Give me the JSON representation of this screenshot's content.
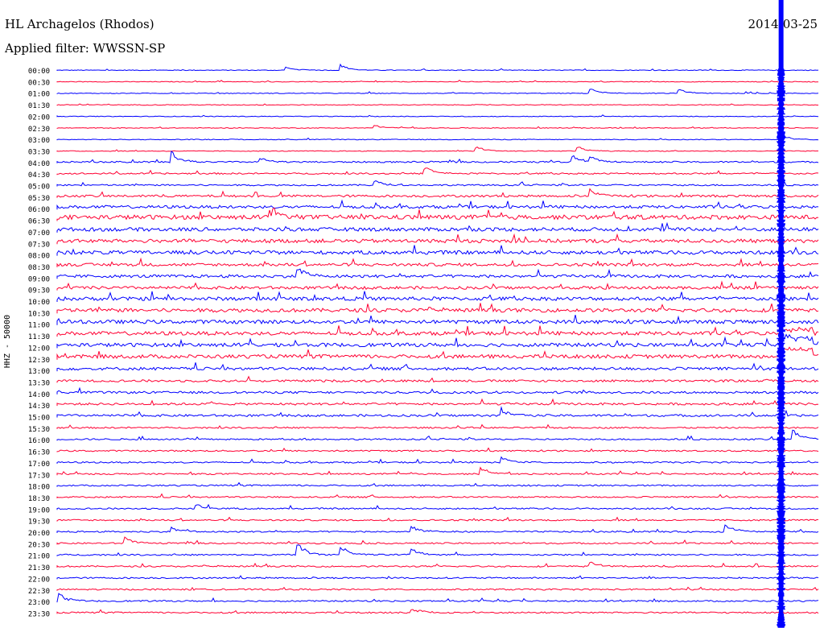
{
  "header": {
    "station": "HL Archagelos (Rhodos)",
    "filter": "Applied filter: WWSSN-SP",
    "date": "2014-03-25"
  },
  "chart_data": {
    "type": "line",
    "ylabel": "HHZ - 50000",
    "row_times": [
      "00:00",
      "00:30",
      "01:00",
      "01:30",
      "02:00",
      "02:30",
      "03:00",
      "03:30",
      "04:00",
      "04:30",
      "05:00",
      "05:30",
      "06:00",
      "06:30",
      "07:00",
      "07:30",
      "08:00",
      "08:30",
      "09:00",
      "09:30",
      "10:00",
      "10:30",
      "11:00",
      "11:30",
      "12:00",
      "12:30",
      "13:00",
      "13:30",
      "14:00",
      "14:30",
      "15:00",
      "15:30",
      "16:00",
      "16:30",
      "17:00",
      "17:30",
      "18:00",
      "18:30",
      "19:00",
      "19:30",
      "20:00",
      "20:30",
      "21:00",
      "21:30",
      "22:00",
      "22:30",
      "23:00",
      "23:30"
    ],
    "row_minutes": 30,
    "colors": [
      "#0000ff",
      "#ff0033"
    ],
    "noise_amplitude": [
      1,
      1,
      1,
      1,
      1,
      1,
      1,
      1,
      2,
      2,
      2,
      3,
      4,
      6,
      5,
      5,
      5,
      4,
      4,
      4,
      5,
      5,
      5,
      5,
      5,
      5,
      4,
      3,
      3,
      3,
      3,
      2,
      2,
      2,
      2,
      2,
      2,
      2,
      2,
      2,
      2,
      2,
      2,
      2,
      2,
      2,
      2,
      2
    ],
    "events": [
      {
        "row": 0,
        "minute": 9.0,
        "amplitude": 5
      },
      {
        "row": 0,
        "minute": 11.2,
        "amplitude": 8
      },
      {
        "row": 2,
        "minute": 21.0,
        "amplitude": 7
      },
      {
        "row": 2,
        "minute": 24.5,
        "amplitude": 5
      },
      {
        "row": 5,
        "minute": 12.5,
        "amplitude": 4
      },
      {
        "row": 6,
        "minute": 28.5,
        "amplitude": 7
      },
      {
        "row": 7,
        "minute": 16.5,
        "amplitude": 7
      },
      {
        "row": 7,
        "minute": 20.5,
        "amplitude": 6
      },
      {
        "row": 8,
        "minute": 4.5,
        "amplitude": 14
      },
      {
        "row": 8,
        "minute": 8.0,
        "amplitude": 6
      },
      {
        "row": 8,
        "minute": 20.3,
        "amplitude": 10
      },
      {
        "row": 8,
        "minute": 21.0,
        "amplitude": 9
      },
      {
        "row": 9,
        "minute": 14.5,
        "amplitude": 9
      },
      {
        "row": 10,
        "minute": 12.5,
        "amplitude": 7
      },
      {
        "row": 11,
        "minute": 21.0,
        "amplitude": 10
      },
      {
        "row": 13,
        "minute": 8.5,
        "amplitude": 12
      },
      {
        "row": 18,
        "minute": 9.5,
        "amplitude": 12
      },
      {
        "row": 30,
        "minute": 17.5,
        "amplitude": 10
      },
      {
        "row": 32,
        "minute": 29.0,
        "amplitude": 12
      },
      {
        "row": 34,
        "minute": 17.5,
        "amplitude": 8
      },
      {
        "row": 35,
        "minute": 16.7,
        "amplitude": 10
      },
      {
        "row": 38,
        "minute": 5.5,
        "amplitude": 6
      },
      {
        "row": 40,
        "minute": 4.5,
        "amplitude": 7
      },
      {
        "row": 40,
        "minute": 14.0,
        "amplitude": 8
      },
      {
        "row": 40,
        "minute": 26.3,
        "amplitude": 12
      },
      {
        "row": 41,
        "minute": 2.7,
        "amplitude": 9
      },
      {
        "row": 42,
        "minute": 9.5,
        "amplitude": 16
      },
      {
        "row": 42,
        "minute": 11.2,
        "amplitude": 12
      },
      {
        "row": 42,
        "minute": 14.0,
        "amplitude": 8
      },
      {
        "row": 43,
        "minute": 21.0,
        "amplitude": 7
      },
      {
        "row": 46,
        "minute": 0.1,
        "amplitude": 10
      },
      {
        "row": 47,
        "minute": 14.0,
        "amplitude": 6
      }
    ],
    "major_event": {
      "time": "11:30",
      "minute_in_row": 28.5,
      "saturation_rows_from": "00:00",
      "saturation_rows_to": "23:30",
      "coda_until": "12:30"
    }
  }
}
